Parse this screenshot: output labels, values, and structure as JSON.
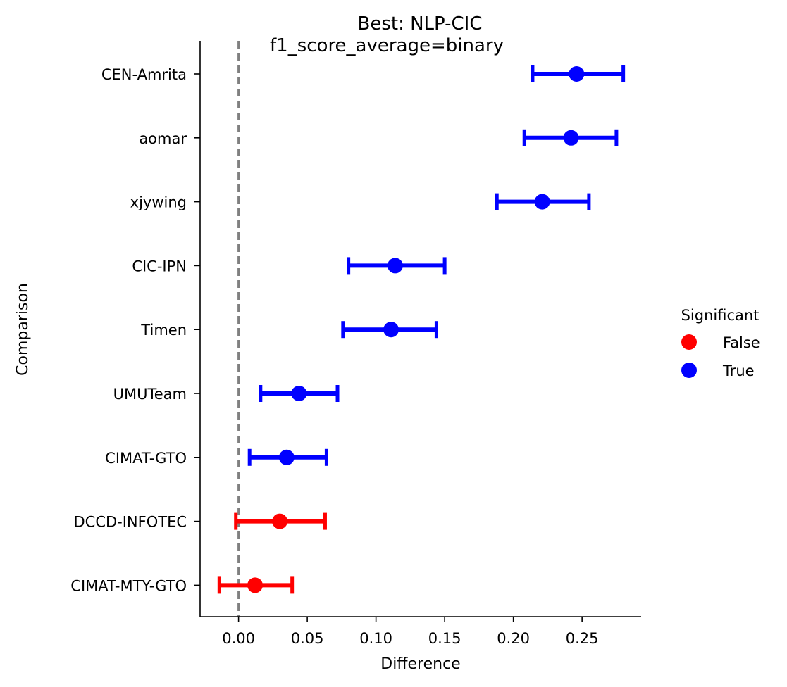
{
  "chart_data": {
    "type": "scatter",
    "title": "Best: NLP-CIC",
    "subtitle": "f1_score_average=binary",
    "xlabel": "Difference",
    "ylabel": "Comparison",
    "xlim": [
      -0.028,
      0.293
    ],
    "xticks": [
      0.0,
      0.05,
      0.1,
      0.15,
      0.2,
      0.25
    ],
    "xtick_labels": [
      "0.00",
      "0.05",
      "0.10",
      "0.15",
      "0.20",
      "0.25"
    ],
    "reference_line": 0.0,
    "legend": {
      "title": "Significant",
      "placement": "right",
      "entries": [
        {
          "label": "False",
          "color": "#ff0000"
        },
        {
          "label": "True",
          "color": "#0000ff"
        }
      ]
    },
    "points": [
      {
        "label": "CEN-Amrita",
        "value": 0.246,
        "lower": 0.214,
        "upper": 0.28,
        "significant": true
      },
      {
        "label": "aomar",
        "value": 0.242,
        "lower": 0.208,
        "upper": 0.275,
        "significant": true
      },
      {
        "label": "xjywing",
        "value": 0.221,
        "lower": 0.188,
        "upper": 0.255,
        "significant": true
      },
      {
        "label": "CIC-IPN",
        "value": 0.114,
        "lower": 0.08,
        "upper": 0.15,
        "significant": true
      },
      {
        "label": "Timen",
        "value": 0.111,
        "lower": 0.076,
        "upper": 0.144,
        "significant": true
      },
      {
        "label": "UMUTeam",
        "value": 0.044,
        "lower": 0.016,
        "upper": 0.072,
        "significant": true
      },
      {
        "label": "CIMAT-GTO",
        "value": 0.035,
        "lower": 0.008,
        "upper": 0.064,
        "significant": true
      },
      {
        "label": "DCCD-INFOTEC",
        "value": 0.03,
        "lower": -0.002,
        "upper": 0.063,
        "significant": false
      },
      {
        "label": "CIMAT-MTY-GTO",
        "value": 0.012,
        "lower": -0.014,
        "upper": 0.039,
        "significant": false
      }
    ]
  }
}
